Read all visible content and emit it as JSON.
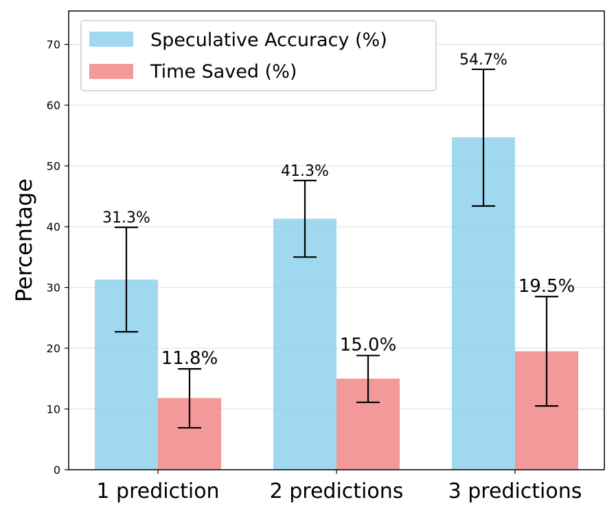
{
  "chart_data": {
    "type": "bar",
    "title": "",
    "xlabel": "",
    "ylabel": "Percentage",
    "ylim": [
      0,
      75.5
    ],
    "yticks": [
      0,
      10,
      20,
      30,
      40,
      50,
      60,
      70
    ],
    "grid": "horizontal",
    "legend_position": "top-left",
    "categories": [
      "1 prediction",
      "2 predictions",
      "3 predictions"
    ],
    "series": [
      {
        "name": "Speculative Accuracy (%)",
        "color": "#87CEEB",
        "values": [
          31.3,
          41.3,
          54.7
        ],
        "error_low": [
          22.7,
          35.0,
          43.4
        ],
        "error_high": [
          39.9,
          47.6,
          65.9
        ],
        "labels": [
          "31.3%",
          "41.3%",
          "54.7%"
        ]
      },
      {
        "name": "Time Saved (%)",
        "color": "#F08080",
        "values": [
          11.8,
          15.0,
          19.5
        ],
        "error_low": [
          6.9,
          11.1,
          10.5
        ],
        "error_high": [
          16.6,
          18.8,
          28.5
        ],
        "labels": [
          "11.8%",
          "15.0%",
          "19.5%"
        ]
      }
    ]
  }
}
